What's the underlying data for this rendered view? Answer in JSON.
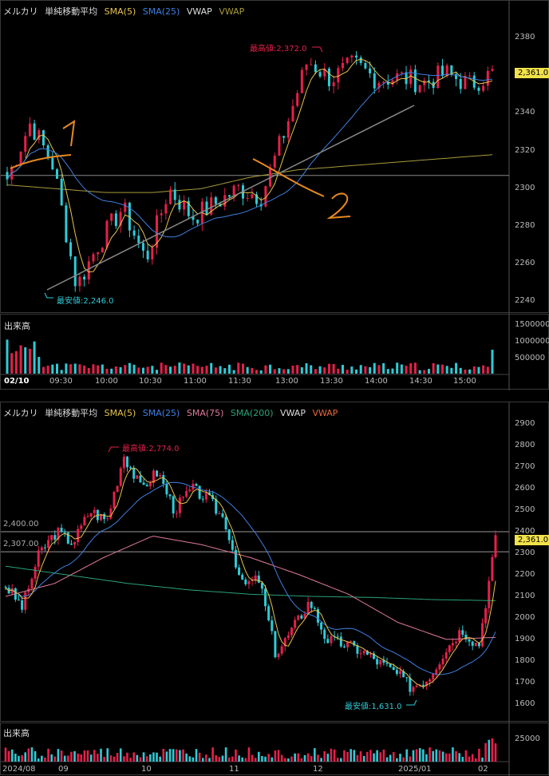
{
  "colors": {
    "up": "#e6204a",
    "down": "#2ecbd6",
    "sma5": "#e8c34a",
    "sma25": "#3f7fe0",
    "sma75": "#e07a9a",
    "sma200": "#2aa37a",
    "vwap_line": "#a89a3a",
    "tag_bg": "#f2e24a",
    "hi": "#e6204a",
    "lo": "#2ecbd6",
    "annot": "#e88a1f"
  },
  "intraday": {
    "legend": {
      "name": "メルカリ",
      "indicator": "単純移動平均",
      "sma5": "SMA(5)",
      "sma25": "SMA(25)",
      "vwap": "VWAP",
      "vwap2": "VWAP"
    },
    "y_ticks": [
      "2380",
      "2360",
      "2340",
      "2320",
      "2300",
      "2280",
      "2260",
      "2240"
    ],
    "last_price": "2,361.0",
    "high_label": "最高値:2,372.0",
    "low_label": "最安値:2,246.0",
    "volume_title": "出来高",
    "volume_ticks": [
      "1500000",
      "1000000",
      "500000"
    ],
    "x_labels": [
      "02/10",
      "09:30",
      "10:00",
      "10:30",
      "11:00",
      "11:30",
      "13:00",
      "13:30",
      "14:00",
      "14:30",
      "15:00"
    ],
    "annotations": [
      "1",
      "2"
    ]
  },
  "daily": {
    "legend": {
      "name": "メルカリ",
      "indicator": "単純移動平均",
      "sma5": "SMA(5)",
      "sma25": "SMA(25)",
      "sma75": "SMA(75)",
      "sma200": "SMA(200)",
      "vwap": "VWAP",
      "vwap2": "VWAP"
    },
    "y_ticks": [
      "2900",
      "2800",
      "2700",
      "2600",
      "2500",
      "2400",
      "2300",
      "2200",
      "2100",
      "2000",
      "1900",
      "1800",
      "1700",
      "1600"
    ],
    "level_labels": [
      "2,400.00",
      "2,307.00"
    ],
    "last_price": "2,361.0",
    "high_label": "最高値:2,774.0",
    "low_label": "最安値:1,631.0",
    "volume_title": "出来高",
    "volume_ticks": [
      "25000"
    ],
    "x_labels": [
      "2024/08",
      "09",
      "10",
      "11",
      "12",
      "2025/01",
      "02"
    ]
  }
}
